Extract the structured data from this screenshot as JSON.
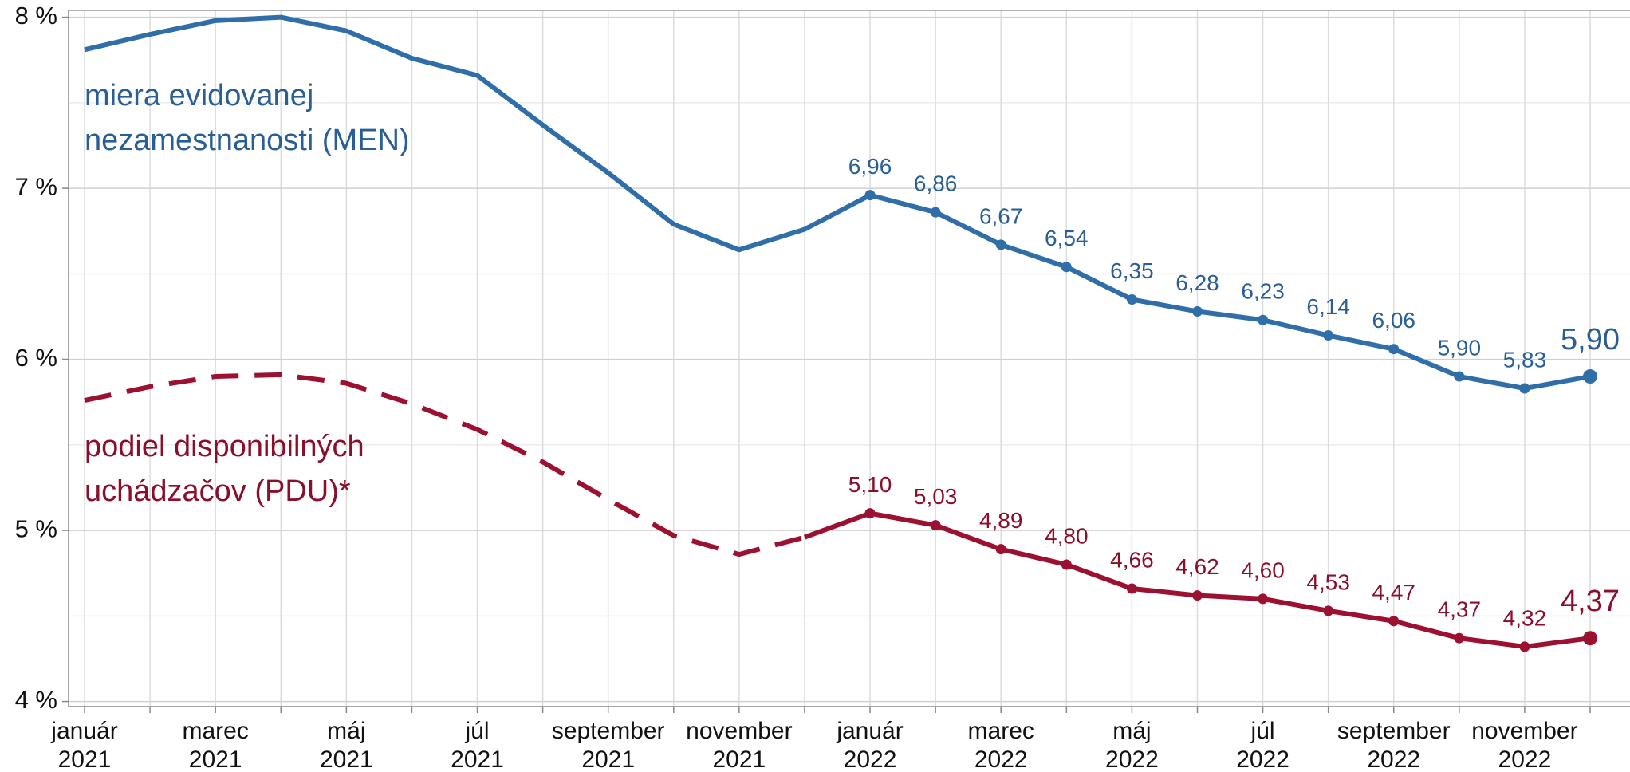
{
  "chart_data": {
    "type": "line",
    "categories": [
      "január\n2021",
      null,
      "marec\n2021",
      null,
      "máj\n2021",
      null,
      "júl\n2021",
      null,
      "september\n2021",
      null,
      "november\n2021",
      null,
      "január\n2022",
      null,
      "marec\n2022",
      null,
      "máj\n2022",
      null,
      "júl\n2022",
      null,
      "september\n2022",
      null,
      "november\n2022",
      null
    ],
    "series": [
      {
        "name": "miera evidovanej\nnezamestnanosti (MEN)",
        "color": "#2f6ea8",
        "label_color": "#2a5f95",
        "values": [
          7.81,
          7.9,
          7.98,
          8.0,
          7.92,
          7.76,
          7.66,
          7.37,
          7.09,
          6.79,
          6.64,
          6.76,
          6.96,
          6.86,
          6.67,
          6.54,
          6.35,
          6.28,
          6.23,
          6.14,
          6.06,
          5.9,
          5.83,
          5.9
        ],
        "value_labels": [
          null,
          null,
          null,
          null,
          null,
          null,
          null,
          null,
          null,
          null,
          null,
          null,
          "6,96",
          "6,86",
          "6,67",
          "6,54",
          "6,35",
          "6,28",
          "6,23",
          "6,14",
          "6,06",
          "5,90",
          "5,83",
          "5,90"
        ]
      },
      {
        "name": "podiel disponibilných\nuchádzačov (PDU)*",
        "color": "#9c1032",
        "label_color": "#8a0f2c",
        "dashed_through": 11,
        "values": [
          5.76,
          5.84,
          5.9,
          5.91,
          5.86,
          5.74,
          5.59,
          5.4,
          5.18,
          4.97,
          4.86,
          4.96,
          5.1,
          5.03,
          4.89,
          4.8,
          4.66,
          4.62,
          4.6,
          4.53,
          4.47,
          4.37,
          4.32,
          4.37
        ],
        "value_labels": [
          null,
          null,
          null,
          null,
          null,
          null,
          null,
          null,
          null,
          null,
          null,
          null,
          "5,10",
          "5,03",
          "4,89",
          "4,80",
          "4,66",
          "4,62",
          "4,60",
          "4,53",
          "4,47",
          "4,37",
          "4,32",
          "4,37"
        ]
      }
    ],
    "ylim": [
      3.97,
      8.04
    ],
    "yticks": [
      {
        "value": 4,
        "label": "4 %"
      },
      {
        "value": 5,
        "label": "5 %"
      },
      {
        "value": 6,
        "label": "6 %"
      },
      {
        "value": 7,
        "label": "7 %"
      },
      {
        "value": 8,
        "label": "8 %"
      }
    ],
    "yminor": [
      4.5,
      5.5,
      6.5,
      7.5
    ],
    "grid": true
  }
}
